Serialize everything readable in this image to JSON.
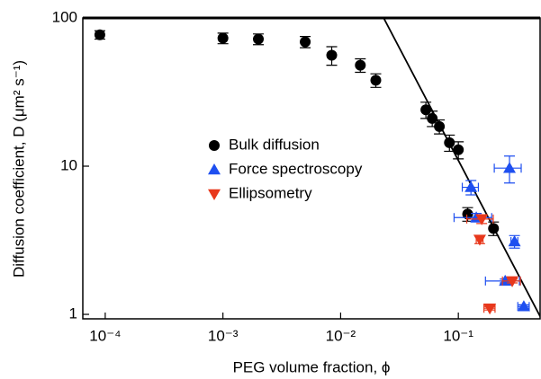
{
  "chart_data": {
    "type": "scatter",
    "x_label": "PEG volume fraction, ϕ",
    "y_label": "Diffusion coefficient, D (μm² s⁻¹)",
    "x_log": true,
    "y_log": true,
    "xlim": [
      6.45e-05,
      0.495
    ],
    "ylim": [
      0.933,
      100
    ],
    "xticks": [
      {
        "value": 0.0001,
        "label": "10⁻⁴"
      },
      {
        "value": 0.001,
        "label": "10⁻³"
      },
      {
        "value": 0.01,
        "label": "10⁻²"
      },
      {
        "value": 0.1,
        "label": "10⁻¹"
      }
    ],
    "yticks": [
      1,
      10,
      100
    ],
    "legend": "center",
    "series": [
      {
        "name": "Bulk diffusion",
        "color": "#000000",
        "marker": "circle",
        "x": [
          9e-05,
          0.001,
          0.002,
          0.005,
          0.0084,
          0.0147,
          0.0199,
          0.053,
          0.06,
          0.069,
          0.084,
          0.1,
          0.12,
          0.199
        ],
        "y": [
          77,
          73,
          72,
          69,
          56,
          48,
          38,
          24,
          21,
          18.5,
          14.4,
          12.9,
          4.75,
          3.8
        ],
        "yerr": [
          5,
          6,
          6,
          6,
          8,
          5,
          4,
          3,
          2.5,
          2,
          1.8,
          1.7,
          0.5,
          0.4
        ]
      },
      {
        "name": "Force spectroscopy",
        "color": "#1e4ff0",
        "marker": "triangle-up",
        "x": [
          0.128,
          0.272,
          0.3,
          0.142,
          0.25,
          0.36
        ],
        "y": [
          7.2,
          9.7,
          3.1,
          4.5,
          1.68,
          1.13
        ],
        "xerr": [
          0.02,
          0.07,
          0.02,
          0.05,
          0.08,
          0.04
        ],
        "yerr": [
          0.8,
          2,
          0.3,
          0.3,
          0.05,
          0.03
        ]
      },
      {
        "name": "Ellipsometry",
        "color": "#e8381c",
        "marker": "triangle-down",
        "x": [
          0.158,
          0.152,
          0.287,
          0.185
        ],
        "y": [
          4.4,
          3.2,
          1.68,
          1.1
        ],
        "xerr": [
          0.04,
          0.01,
          0.05,
          0.02
        ],
        "yerr": [
          0.3,
          0.2,
          0.05,
          0.03
        ]
      }
    ],
    "fit_line": {
      "color": "#000000",
      "x": [
        0.0232,
        0.495
      ],
      "y": [
        100,
        0.97
      ]
    }
  }
}
